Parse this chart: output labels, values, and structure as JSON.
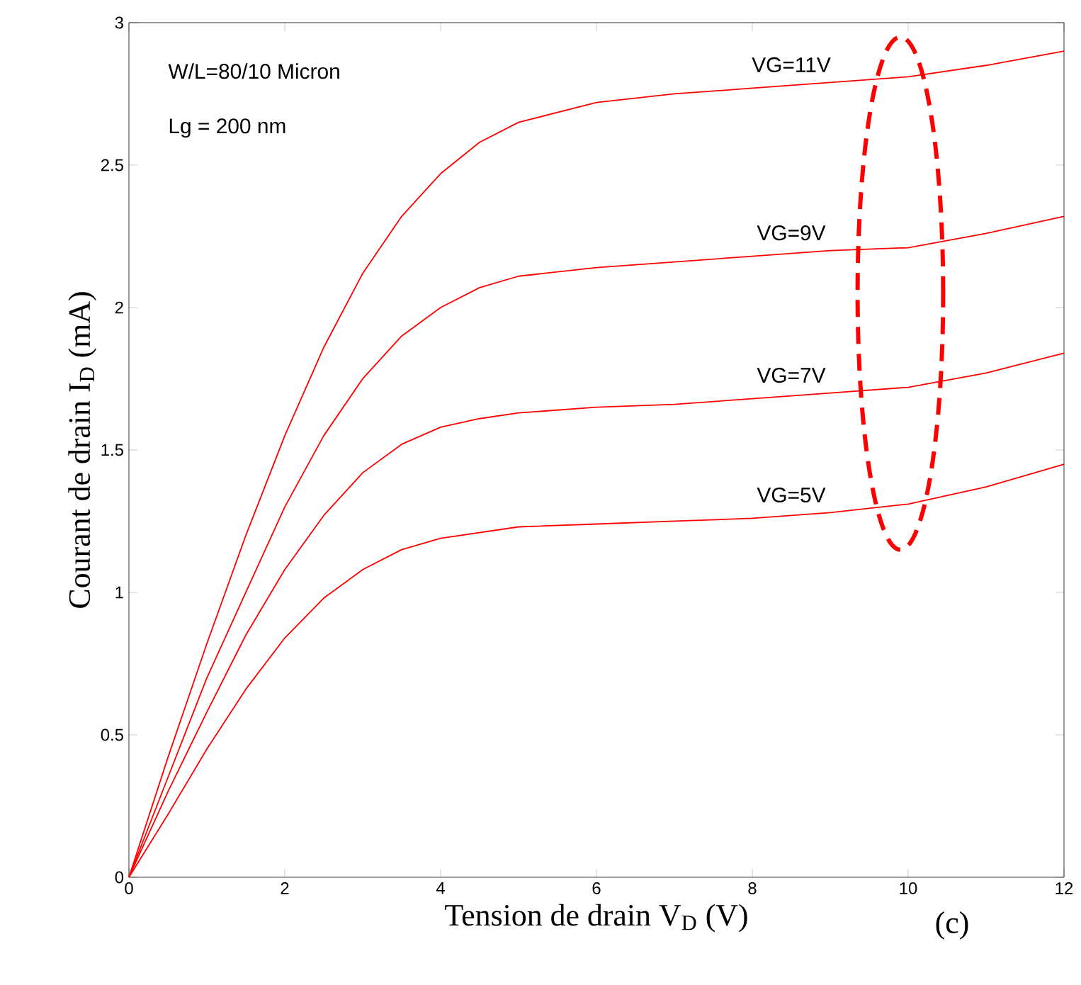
{
  "chart_data": {
    "type": "line",
    "xlabel": "Tension de drain V$_{D}$ (V)",
    "ylabel": "Courant de drain I$_{D}$ (mA)",
    "x": [
      0,
      0.5,
      1,
      1.5,
      2,
      2.5,
      3,
      3.5,
      4,
      4.5,
      5,
      6,
      7,
      8,
      9,
      10,
      11,
      12
    ],
    "series": [
      {
        "name": "VG=11V",
        "color": "#ff0000",
        "values": [
          0,
          0.42,
          0.82,
          1.2,
          1.55,
          1.86,
          2.12,
          2.32,
          2.47,
          2.58,
          2.65,
          2.72,
          2.75,
          2.77,
          2.79,
          2.81,
          2.85,
          2.9
        ]
      },
      {
        "name": "VG=9V",
        "color": "#ff0000",
        "values": [
          0,
          0.35,
          0.7,
          1.0,
          1.3,
          1.55,
          1.75,
          1.9,
          2.0,
          2.07,
          2.11,
          2.14,
          2.16,
          2.18,
          2.2,
          2.21,
          2.26,
          2.32
        ]
      },
      {
        "name": "VG=7V",
        "color": "#ff0000",
        "values": [
          0,
          0.3,
          0.58,
          0.85,
          1.08,
          1.27,
          1.42,
          1.52,
          1.58,
          1.61,
          1.63,
          1.65,
          1.66,
          1.68,
          1.7,
          1.72,
          1.77,
          1.84
        ]
      },
      {
        "name": "VG=5V",
        "color": "#ff0000",
        "values": [
          0,
          0.22,
          0.45,
          0.66,
          0.84,
          0.98,
          1.08,
          1.15,
          1.19,
          1.21,
          1.23,
          1.24,
          1.25,
          1.26,
          1.28,
          1.31,
          1.37,
          1.45
        ]
      }
    ],
    "xlim": [
      0,
      12
    ],
    "ylim": [
      0,
      3
    ],
    "xticks": [
      0,
      2,
      4,
      6,
      8,
      10,
      12
    ],
    "yticks": [
      0,
      0.5,
      1,
      1.5,
      2,
      2.5,
      3
    ],
    "annotations": [
      "W/L=80/10 Micron",
      "Lg = 200 nm",
      "(c)"
    ]
  }
}
